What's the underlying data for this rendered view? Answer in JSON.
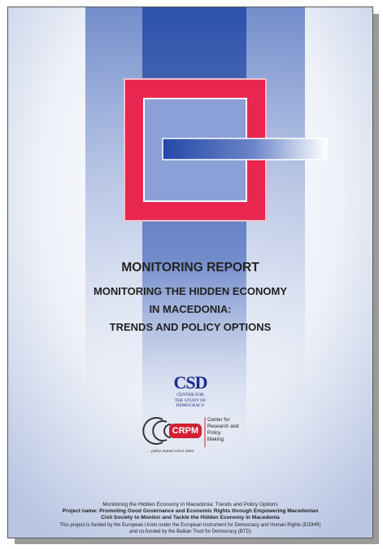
{
  "report_type": "MONITORING REPORT",
  "title_lines": [
    "MONITORING THE HIDDEN ECONOMY",
    "IN MACEDONIA:",
    "TRENDS AND POLICY OPTIONS"
  ],
  "csd_logo": {
    "acronym": "CSD",
    "lines": [
      "CENTER FOR",
      "THE STUDY OF",
      "DEMOCRACY"
    ]
  },
  "crpm_logo": {
    "acronym": "CRPM",
    "lines": [
      "Center for",
      "Research and",
      "Policy",
      "Making"
    ],
    "tagline": ". . . policy impact since 2004"
  },
  "footer": [
    "Monitoring the Hidden Economy in Macedonia: Trends and Policy Options",
    "Project name: Promoting Good Governance and Economic Rights through Empowering Macedonian",
    "Civil Society to Monitor and Tackle the Hidden Economy in Macedonia",
    "This project is funded by the European Union under the European Instrument for Democracy and Human Rights (EIDHR)",
    "and co-funded by the Balkan Trust for Democracy (BTD)"
  ]
}
